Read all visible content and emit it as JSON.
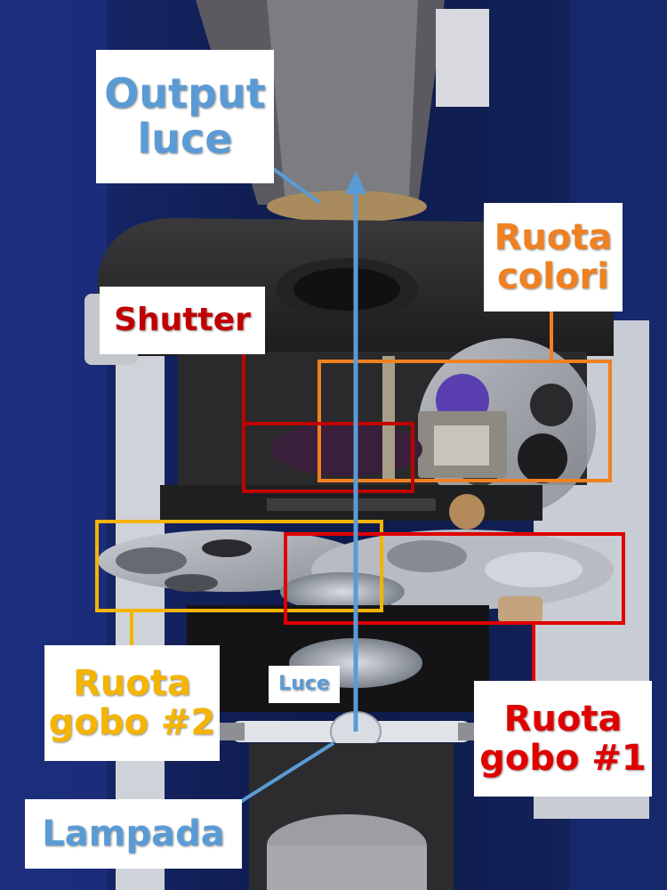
{
  "labels": {
    "output": {
      "line1": "Output",
      "line2": "luce",
      "color": "#5b9bd5"
    },
    "ruota_colori": {
      "line1": "Ruota",
      "line2": "colori",
      "color": "#f08020"
    },
    "shutter": {
      "text": "Shutter",
      "color": "#c00000"
    },
    "ruota_gobo_2": {
      "line1": "Ruota",
      "line2": "gobo #2",
      "color": "#f4b400"
    },
    "ruota_gobo_1": {
      "line1": "Ruota",
      "line2": "gobo #1",
      "color": "#e00000"
    },
    "luce": {
      "text": "Luce",
      "color": "#5b9bd5"
    },
    "lampada": {
      "text": "Lampada",
      "color": "#5b9bd5"
    }
  },
  "colors": {
    "blue_arrow": "#5b9bd5",
    "orange_box": "#f08020",
    "red_box": "#e00000",
    "dark_red_box": "#c00000",
    "yellow_box": "#f4b400"
  }
}
